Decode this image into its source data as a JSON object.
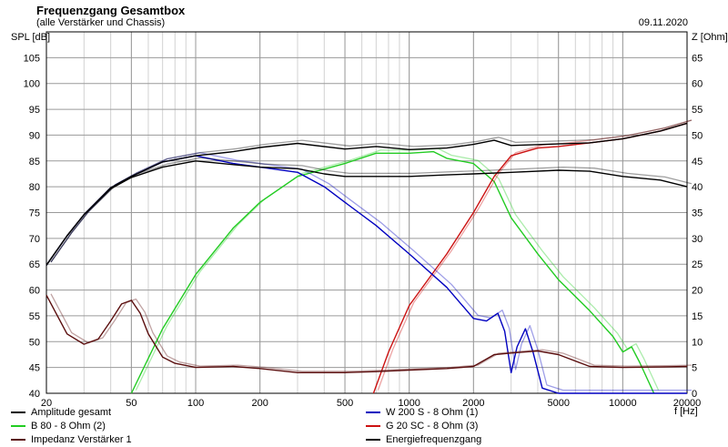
{
  "header": {
    "title": "Frequenzgang Gesamtbox",
    "subtitle": "(alle Verstärker und Chassis)",
    "date": "09.11.2020"
  },
  "colors": {
    "grid": "#9a9a9a",
    "frame": "#000000",
    "series": {
      "amplitude": "#000000",
      "w200": "#0000c0",
      "b80": "#22cc22",
      "g20": "#cc1111",
      "impedance": "#5a0d0d",
      "energy": "#000000"
    }
  },
  "chart_data": {
    "type": "line",
    "title": "Frequenzgang Gesamtbox",
    "xlabel": "f [Hz]",
    "ylabel": "SPL [dB]",
    "ylabel_right": "Z [Ohm]",
    "xscale": "log",
    "xlim": [
      20,
      20000
    ],
    "ylim": [
      40,
      110
    ],
    "ylim_right": [
      0,
      70
    ],
    "grid": true,
    "legend_position": "bottom",
    "x_ticks": [
      {
        "value": 20,
        "label": "20"
      },
      {
        "value": 50,
        "label": "50"
      },
      {
        "value": 100,
        "label": "100"
      },
      {
        "value": 200,
        "label": "200"
      },
      {
        "value": 500,
        "label": "500"
      },
      {
        "value": 1000,
        "label": "1000"
      },
      {
        "value": 2000,
        "label": "2000"
      },
      {
        "value": 5000,
        "label": "5000"
      },
      {
        "value": 10000,
        "label": "10000"
      },
      {
        "value": 20000,
        "label": "20000"
      }
    ],
    "y_ticks_left": [
      "40",
      "45",
      "50",
      "55",
      "60",
      "65",
      "70",
      "75",
      "80",
      "85",
      "90",
      "95",
      "100",
      "105"
    ],
    "y_ticks_right": [
      "0",
      "5",
      "10",
      "15",
      "20",
      "25",
      "30",
      "35",
      "40",
      "45",
      "50",
      "55",
      "60",
      "65"
    ],
    "series": [
      {
        "key": "amplitude",
        "name": "Amplitude gesamt",
        "axis": "left",
        "x": [
          20,
          25,
          30,
          40,
          50,
          70,
          100,
          150,
          200,
          300,
          500,
          700,
          1000,
          1500,
          2000,
          2500,
          3000,
          5000,
          7000,
          10000,
          15000,
          20000
        ],
        "y": [
          64.8,
          70.5,
          74.6,
          79.8,
          82,
          84.8,
          86,
          86.8,
          87.6,
          88.4,
          87.3,
          87.8,
          87.2,
          87.5,
          88.2,
          89,
          88,
          88.3,
          88.5,
          89.3,
          90.8,
          92.3
        ]
      },
      {
        "key": "w200",
        "name": "W 200 S - 8 Ohm (1)",
        "axis": "left",
        "x": [
          20,
          25,
          30,
          40,
          50,
          70,
          100,
          150,
          200,
          300,
          400,
          500,
          700,
          1000,
          1500,
          2000,
          2300,
          2600,
          2800,
          3000,
          3200,
          3500,
          3800,
          4200,
          5000,
          6000,
          20000
        ],
        "y": [
          64.8,
          70.5,
          74.6,
          79.8,
          82,
          84.8,
          86,
          84.5,
          83.8,
          82.8,
          80,
          77,
          72.5,
          67,
          60.5,
          54.5,
          54,
          55.5,
          52,
          44,
          49,
          52.5,
          48,
          41,
          40,
          40,
          40
        ]
      },
      {
        "key": "b80",
        "name": "B 80 - 8 Ohm (2)",
        "axis": "left",
        "x": [
          50,
          70,
          100,
          150,
          200,
          300,
          500,
          700,
          1000,
          1300,
          1500,
          2000,
          2500,
          3000,
          4000,
          5000,
          7000,
          9000,
          10000,
          11000,
          12000,
          14000
        ],
        "y": [
          40,
          52.5,
          63,
          72,
          77,
          82,
          84.5,
          86.5,
          86.5,
          86.8,
          85.5,
          84.5,
          81,
          74,
          67,
          62,
          56,
          51,
          48,
          49,
          46,
          40
        ]
      },
      {
        "key": "g20",
        "name": "G 20 SC - 8 Ohm (3)",
        "axis": "left",
        "x": [
          680,
          800,
          1000,
          1500,
          2000,
          2500,
          3000,
          4000,
          5000,
          7000,
          10000,
          15000,
          20000
        ],
        "y": [
          40,
          48,
          57,
          67,
          75,
          82,
          86,
          87.5,
          87.8,
          88.5,
          89.3,
          90.8,
          92.3
        ]
      },
      {
        "key": "impedance",
        "name": "Impedanz Verstärker 1",
        "axis": "right",
        "x": [
          20,
          25,
          30,
          35,
          40,
          45,
          50,
          55,
          60,
          70,
          80,
          100,
          150,
          200,
          300,
          500,
          700,
          1000,
          1500,
          2000,
          2500,
          3000,
          3500,
          4000,
          5000,
          7000,
          10000,
          15000,
          20000
        ],
        "y": [
          19,
          11.5,
          9.5,
          10.5,
          14,
          17.3,
          18,
          15.5,
          11.5,
          7,
          5.8,
          5,
          5.2,
          4.8,
          4,
          4,
          4.2,
          4.5,
          4.8,
          5.2,
          7.5,
          7.8,
          8,
          8.2,
          7.5,
          5.2,
          5,
          5.1,
          5.2
        ]
      },
      {
        "key": "energy",
        "name": "Energiefrequenzgang",
        "axis": "left",
        "x": [
          20,
          25,
          30,
          40,
          50,
          70,
          100,
          150,
          200,
          300,
          400,
          500,
          700,
          1000,
          1500,
          2000,
          3000,
          5000,
          7000,
          10000,
          15000,
          20000
        ],
        "y": [
          64.8,
          70.5,
          74.6,
          79.6,
          81.8,
          83.8,
          85,
          84.3,
          83.8,
          83.5,
          82.5,
          82,
          82,
          82,
          82.3,
          82.5,
          82.8,
          83.2,
          83,
          82,
          81.3,
          80
        ]
      }
    ]
  },
  "legend": [
    {
      "key": "amplitude",
      "label": "Amplitude gesamt"
    },
    {
      "key": "b80",
      "label": "B 80 - 8 Ohm (2)"
    },
    {
      "key": "impedance",
      "label": "Impedanz Verstärker 1"
    },
    {
      "key": "w200",
      "label": "W 200 S - 8 Ohm (1)"
    },
    {
      "key": "g20",
      "label": "G 20 SC - 8 Ohm (3)"
    },
    {
      "key": "energy",
      "label": "Energiefrequenzgang"
    }
  ]
}
